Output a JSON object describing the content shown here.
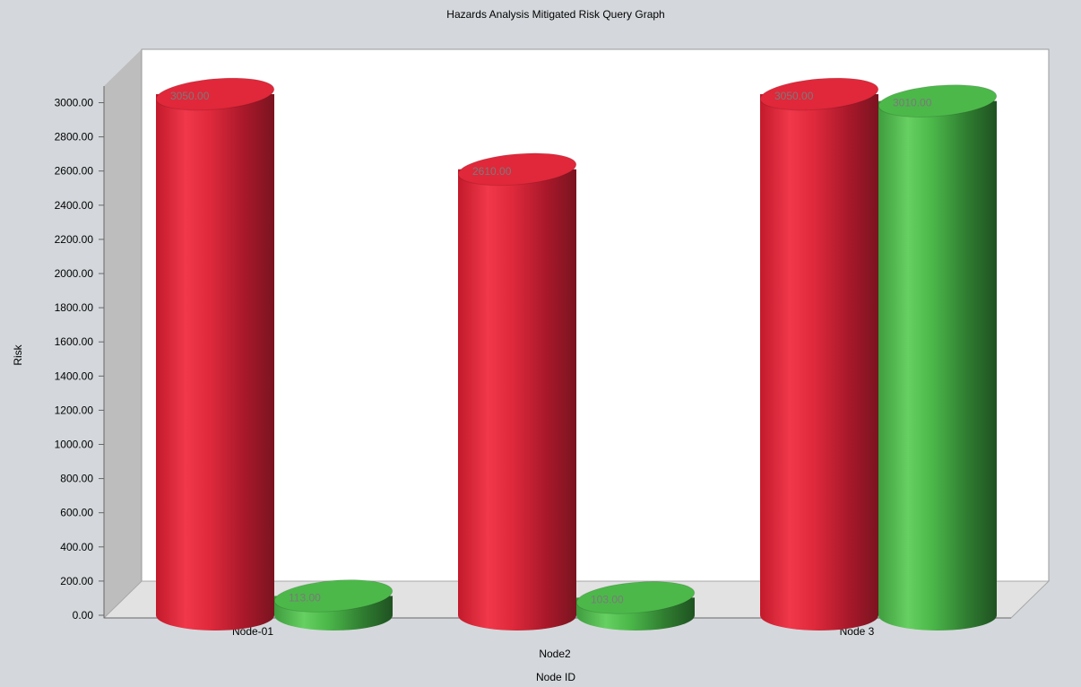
{
  "chart_data": {
    "type": "bar",
    "style": "3d-cylinder",
    "title": "Hazards Analysis Mitigated Risk Query Graph",
    "xlabel": "Node ID",
    "ylabel": "Risk",
    "categories": [
      "Node-01",
      "Node2",
      "Node 3"
    ],
    "series": [
      {
        "values": [
          3050.0,
          2610.0,
          3050.0
        ],
        "color": "#e0283a"
      },
      {
        "values": [
          113.0,
          103.0,
          3010.0
        ],
        "color": "#4cb84a"
      }
    ],
    "ylim": [
      0,
      3000
    ],
    "ytick_step": 200,
    "grid": false,
    "legend": "none"
  }
}
